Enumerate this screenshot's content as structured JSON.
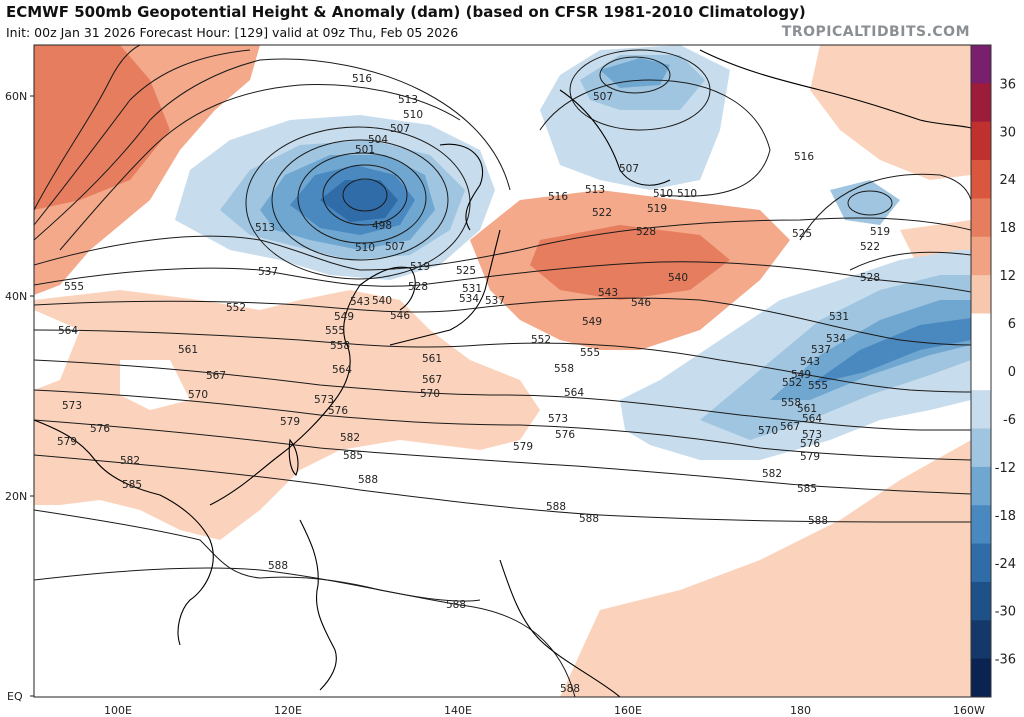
{
  "header": {
    "title": "ECMWF 500mb Geopotential Height & Anomaly (dam) (based on CFSR 1981-2010 Climatology)",
    "subtitle": "Init: 00z Jan 31 2026   Forecast Hour: [129]   valid at 09z Thu, Feb 05 2026",
    "brand": "TROPICALTIDBITS.COM"
  },
  "axes": {
    "lat_labels": [
      "60N",
      "40N",
      "20N",
      "EQ"
    ],
    "lon_labels": [
      "100E",
      "120E",
      "140E",
      "160E",
      "180",
      "160W"
    ]
  },
  "colorbar": {
    "labels": [
      "36",
      "30",
      "24",
      "18",
      "12",
      "6",
      "0",
      "-6",
      "-12",
      "-18",
      "-24",
      "-30",
      "-36"
    ],
    "colors": [
      "#7a1f6e",
      "#9c1c3a",
      "#c0302e",
      "#d9573f",
      "#e67d5e",
      "#f0a282",
      "#f8c8ae",
      "#ffffff",
      "#ffffff",
      "#c7dcec",
      "#9fc5e0",
      "#6fa7d1",
      "#4a88c0",
      "#2f6ca8",
      "#1f5189",
      "#14386a",
      "#0b2350"
    ]
  },
  "contour_labels": [
    "516",
    "513",
    "510",
    "507",
    "504",
    "501",
    "498",
    "513",
    "510",
    "507",
    "519",
    "537",
    "555",
    "552",
    "564",
    "561",
    "567",
    "570",
    "573",
    "576",
    "579",
    "582",
    "585",
    "588",
    "543",
    "540",
    "546",
    "549",
    "555",
    "558",
    "564",
    "561",
    "567",
    "570",
    "573",
    "576",
    "579",
    "582",
    "585",
    "588",
    "525",
    "528",
    "531",
    "534",
    "537",
    "516",
    "513",
    "510",
    "519",
    "522",
    "528",
    "540",
    "543",
    "546",
    "549",
    "552",
    "555",
    "558",
    "564",
    "573",
    "576",
    "579",
    "588",
    "507",
    "507",
    "510",
    "516",
    "525",
    "519",
    "522",
    "528",
    "531",
    "534",
    "537",
    "543",
    "549",
    "552",
    "555",
    "558",
    "561",
    "564",
    "567",
    "570",
    "573",
    "576",
    "579",
    "582",
    "585",
    "588",
    "588",
    "588",
    "588"
  ],
  "colors": {
    "positive_light": "#fbd3bc",
    "positive_mid": "#f3a98a",
    "positive_strong": "#e67d5e",
    "negative_light": "#c7dcec",
    "negative_mid": "#9fc5e0",
    "negative_strong": "#4a88c0",
    "negative_core": "#2f6ca8",
    "contour": "#1a1a1a",
    "coast": "#000000"
  }
}
